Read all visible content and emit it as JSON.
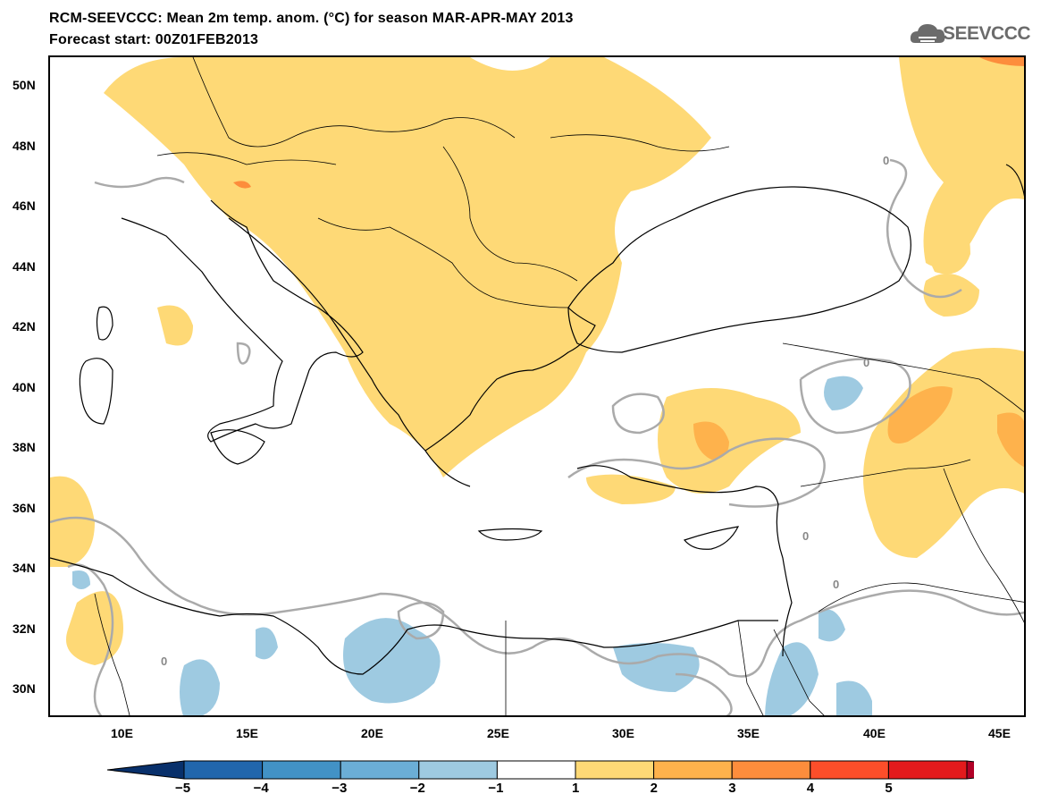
{
  "title_line1": "RCM-SEEVCCC: Mean 2m temp. anom. (°C) for season MAR-APR-MAY 2013",
  "title_line2": "Forecast start: 00Z01FEB2013",
  "logo_text": "SEEVCCC",
  "map": {
    "lon_range": [
      7,
      46
    ],
    "lat_range": [
      29,
      51
    ],
    "x_ticks": [
      "10E",
      "15E",
      "20E",
      "25E",
      "30E",
      "35E",
      "40E",
      "45E"
    ],
    "y_ticks": [
      "50N",
      "48N",
      "46N",
      "44N",
      "42N",
      "40N",
      "38N",
      "36N",
      "34N",
      "32N",
      "30N"
    ],
    "contour_label": "0",
    "land_color": "#ffffff",
    "colors": {
      "warm1": "#fed976",
      "warm2": "#feb24c",
      "warm3": "#fd8d3c",
      "warm5": "#e31a1c",
      "cool1": "#9ecae1",
      "contour": "#aaaaaa",
      "border": "#000000"
    }
  },
  "colorbar": {
    "labels": [
      "−5",
      "−4",
      "−3",
      "−2",
      "−1",
      "1",
      "2",
      "3",
      "4",
      "5"
    ],
    "colors": [
      "#08306b",
      "#2166ac",
      "#4292c6",
      "#6baed6",
      "#9ecae1",
      "#ffffff",
      "#fed976",
      "#feb24c",
      "#fd8d3c",
      "#fc4e2a",
      "#e31a1c",
      "#b10026"
    ]
  }
}
